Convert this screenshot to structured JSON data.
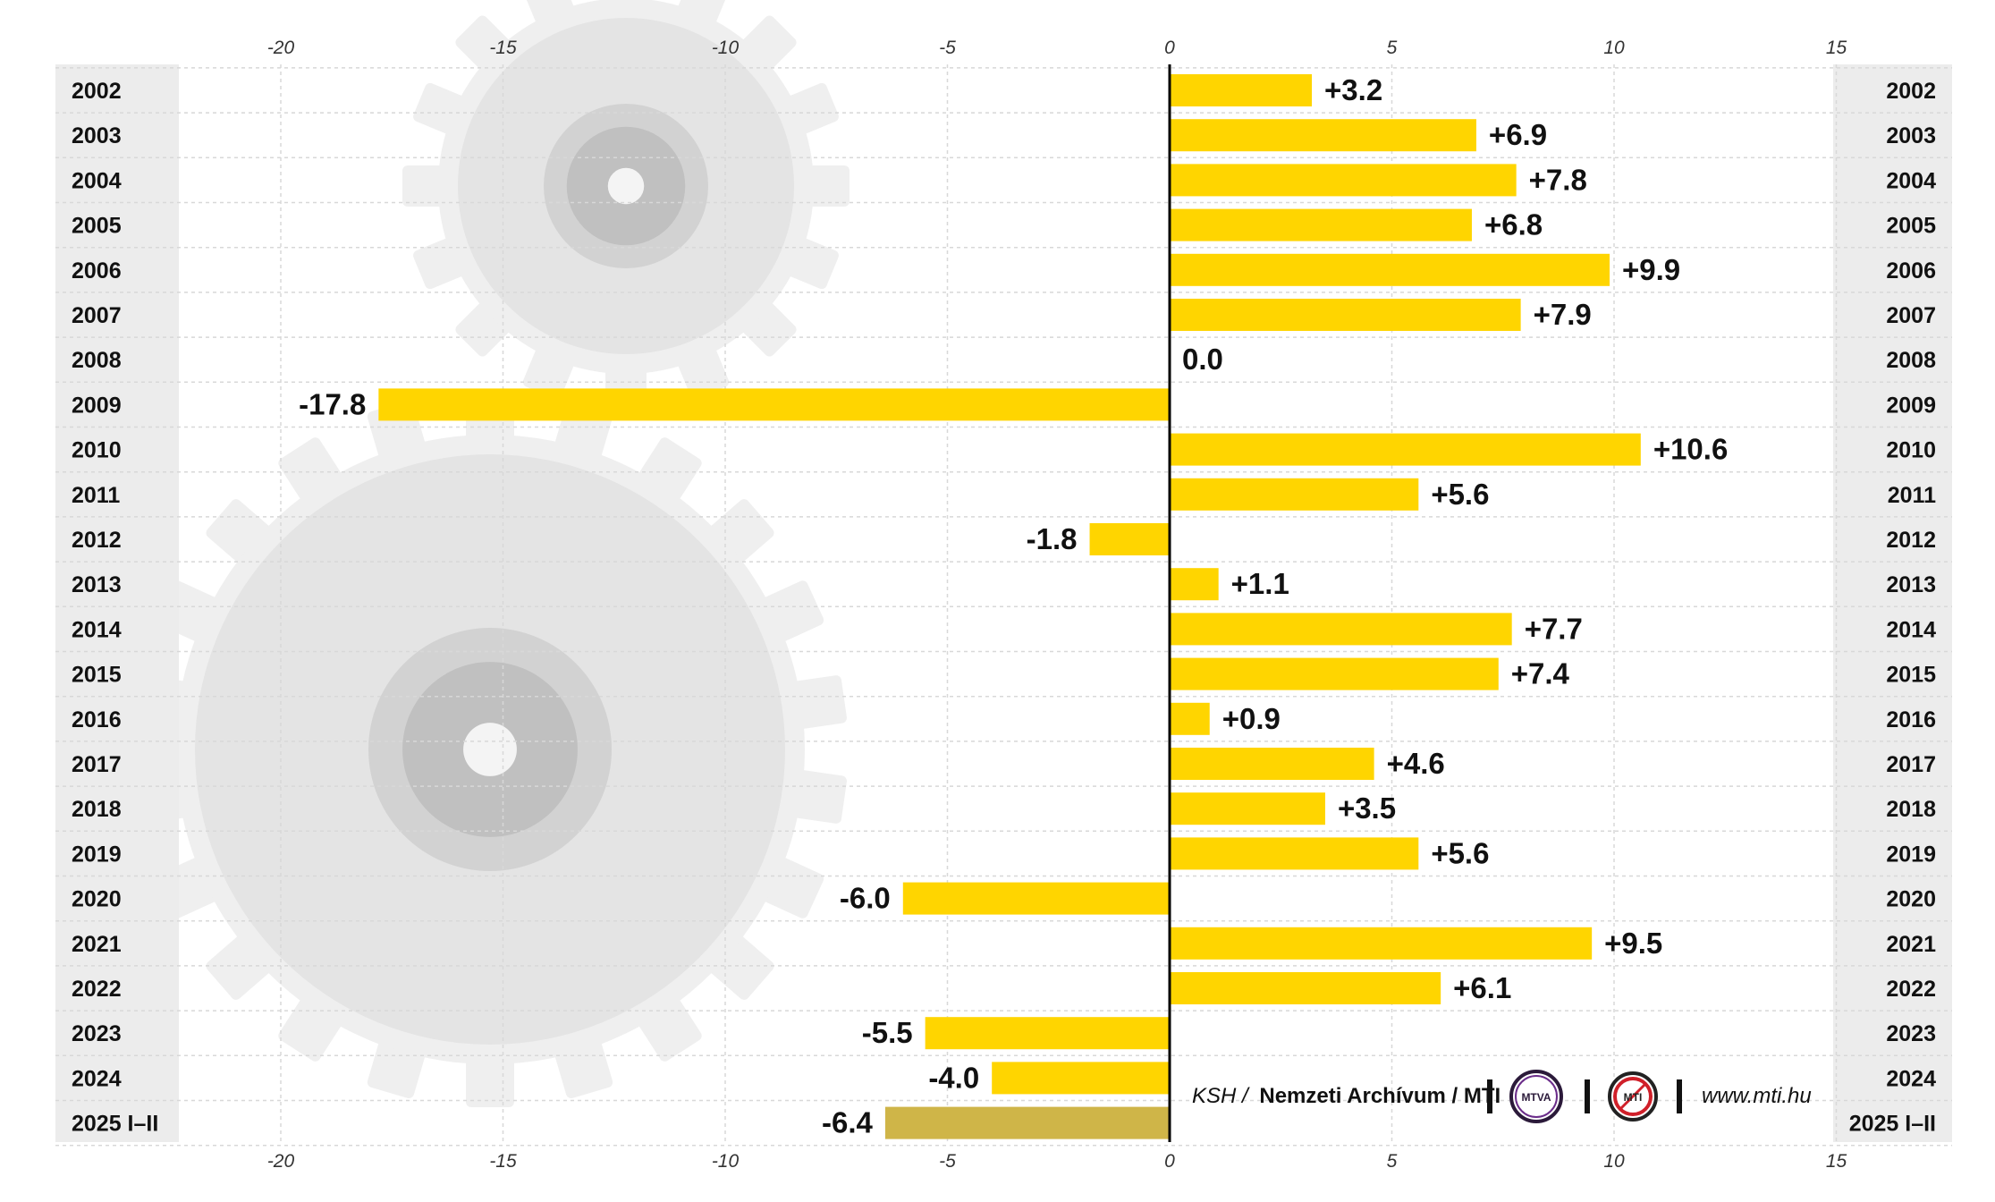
{
  "chart_data": {
    "type": "bar",
    "orientation": "horizontal",
    "categories": [
      "2002",
      "2003",
      "2004",
      "2005",
      "2006",
      "2007",
      "2008",
      "2009",
      "2010",
      "2011",
      "2012",
      "2013",
      "2014",
      "2015",
      "2016",
      "2017",
      "2018",
      "2019",
      "2020",
      "2021",
      "2022",
      "2023",
      "2024",
      "2025 I–II"
    ],
    "values": [
      3.2,
      6.9,
      7.8,
      6.8,
      9.9,
      7.9,
      0.0,
      -17.8,
      10.6,
      5.6,
      -1.8,
      1.1,
      7.7,
      7.4,
      0.9,
      4.6,
      3.5,
      5.6,
      -6.0,
      9.5,
      6.1,
      -5.5,
      -4.0,
      -6.4
    ],
    "value_labels": [
      "+3.2",
      "+6.9",
      "+7.8",
      "+6.8",
      "+9.9",
      "+7.9",
      "0.0",
      "-17.8",
      "+10.6",
      "+5.6",
      "-1.8",
      "+1.1",
      "+7.7",
      "+7.4",
      "+0.9",
      "+4.6",
      "+3.5",
      "+5.6",
      "-6.0",
      "+9.5",
      "+6.1",
      "-5.5",
      "-4.0",
      "-6.4"
    ],
    "xlim": [
      -20,
      15
    ],
    "x_ticks": [
      -20,
      -15,
      -10,
      -5,
      0,
      5,
      10,
      15
    ],
    "grid": true,
    "colors": {
      "bar": "#FFD500",
      "bar_highlight": "#CFB548",
      "zero_line": "#000000",
      "year_column_bg": "#ECECEC",
      "grid": "#D8D8D8"
    },
    "highlight_index": 23
  },
  "credits": {
    "source_italic": "KSH /",
    "source_bold": "Nemzeti Archívum / MTI",
    "logo1": "MTVA",
    "logo2": "MTI",
    "url": "www.mti.hu"
  }
}
